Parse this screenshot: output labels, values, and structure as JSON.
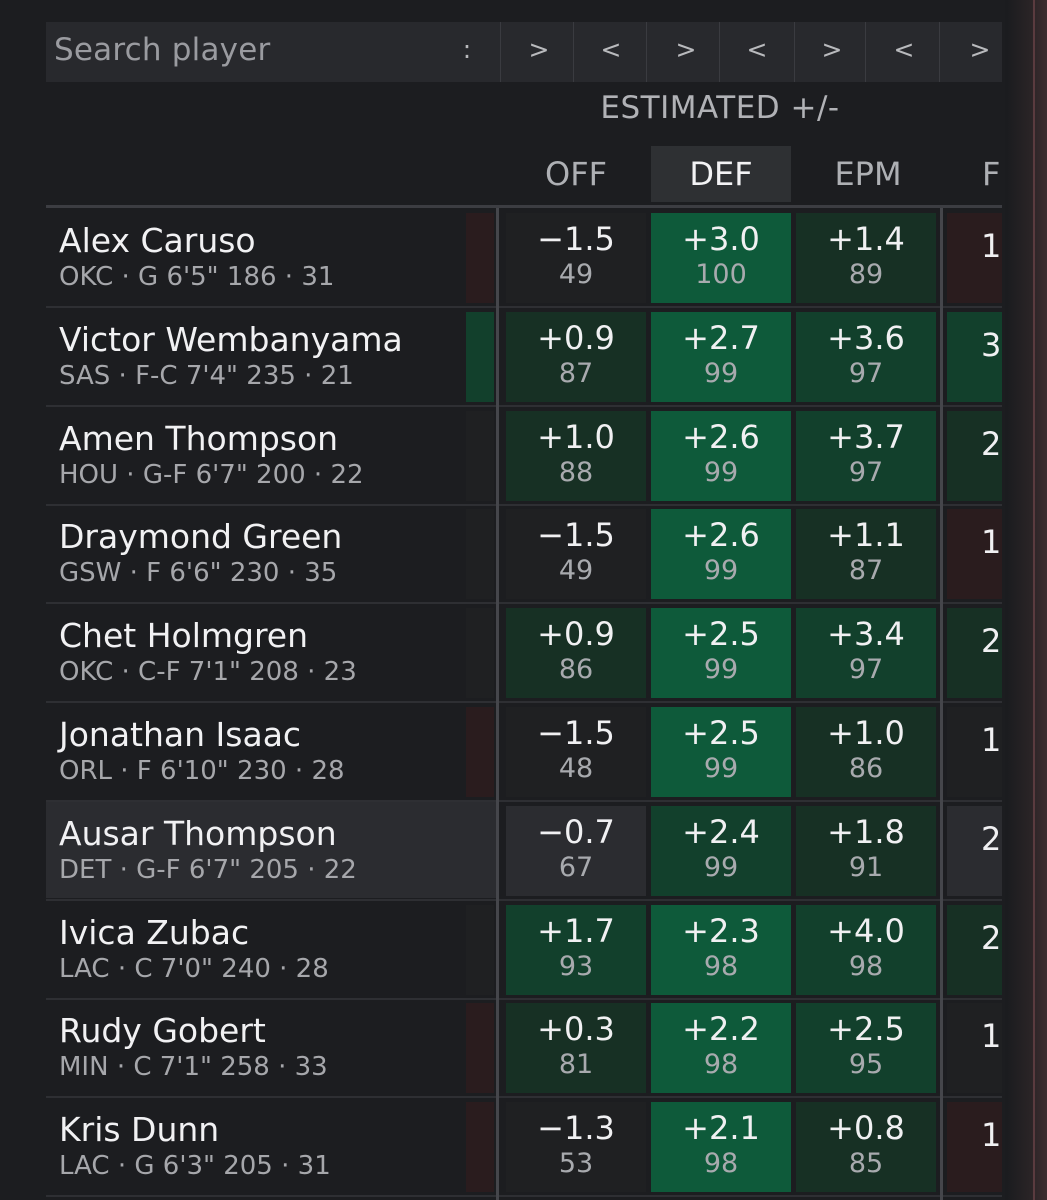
{
  "search": {
    "placeholder": "Search player"
  },
  "toolbar": {
    "chevrons": [
      ":",
      ">",
      "<",
      ">",
      "<",
      ">",
      "<",
      ">"
    ]
  },
  "header": {
    "group_title": "ESTIMATED +/-",
    "columns": [
      "OFF",
      "DEF",
      "EPM",
      "F"
    ],
    "active_column": "DEF"
  },
  "colors": {
    "positive_strong": "#0e5a3a",
    "positive_mid": "#12402c",
    "positive_weak": "#173024",
    "negative": "#2a1c1e",
    "neutral": "#1f2022",
    "highlight_row": "#2b2c30"
  },
  "players": [
    {
      "name": "Alex Caruso",
      "meta": "OKC · G 6'5\" 186 · 31",
      "off": "−1.5",
      "off_pct": "49",
      "def": "+3.0",
      "def_pct": "100",
      "epm": "+1.4",
      "epm_pct": "89",
      "next": "1"
    },
    {
      "name": "Victor Wembanyama",
      "meta": "SAS · F-C 7'4\" 235 · 21",
      "off": "+0.9",
      "off_pct": "87",
      "def": "+2.7",
      "def_pct": "99",
      "epm": "+3.6",
      "epm_pct": "97",
      "next": "3"
    },
    {
      "name": "Amen Thompson",
      "meta": "HOU · G-F 6'7\" 200 · 22",
      "off": "+1.0",
      "off_pct": "88",
      "def": "+2.6",
      "def_pct": "99",
      "epm": "+3.7",
      "epm_pct": "97",
      "next": "2"
    },
    {
      "name": "Draymond Green",
      "meta": "GSW · F 6'6\" 230 · 35",
      "off": "−1.5",
      "off_pct": "49",
      "def": "+2.6",
      "def_pct": "99",
      "epm": "+1.1",
      "epm_pct": "87",
      "next": "1"
    },
    {
      "name": "Chet Holmgren",
      "meta": "OKC · C-F 7'1\" 208 · 23",
      "off": "+0.9",
      "off_pct": "86",
      "def": "+2.5",
      "def_pct": "99",
      "epm": "+3.4",
      "epm_pct": "97",
      "next": "2"
    },
    {
      "name": "Jonathan Isaac",
      "meta": "ORL · F 6'10\" 230 · 28",
      "off": "−1.5",
      "off_pct": "48",
      "def": "+2.5",
      "def_pct": "99",
      "epm": "+1.0",
      "epm_pct": "86",
      "next": "1"
    },
    {
      "name": "Ausar Thompson",
      "meta": "DET · G-F 6'7\" 205 · 22",
      "off": "−0.7",
      "off_pct": "67",
      "def": "+2.4",
      "def_pct": "99",
      "epm": "+1.8",
      "epm_pct": "91",
      "next": "2"
    },
    {
      "name": "Ivica Zubac",
      "meta": "LAC · C 7'0\" 240 · 28",
      "off": "+1.7",
      "off_pct": "93",
      "def": "+2.3",
      "def_pct": "98",
      "epm": "+4.0",
      "epm_pct": "98",
      "next": "2"
    },
    {
      "name": "Rudy Gobert",
      "meta": "MIN · C 7'1\" 258 · 33",
      "off": "+0.3",
      "off_pct": "81",
      "def": "+2.2",
      "def_pct": "98",
      "epm": "+2.5",
      "epm_pct": "95",
      "next": "1"
    },
    {
      "name": "Kris Dunn",
      "meta": "LAC · G 6'3\" 205 · 31",
      "off": "−1.3",
      "off_pct": "53",
      "def": "+2.1",
      "def_pct": "98",
      "epm": "+0.8",
      "epm_pct": "85",
      "next": "1"
    }
  ]
}
